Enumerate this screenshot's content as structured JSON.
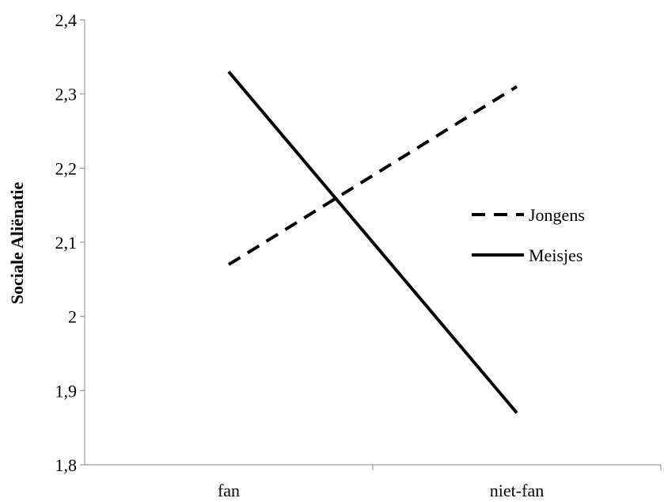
{
  "chart_data": {
    "type": "line",
    "title": "",
    "xlabel": "",
    "ylabel": "Sociale Aliënatie",
    "categories": [
      "fan",
      "niet-fan"
    ],
    "ylim": [
      1.8,
      2.4
    ],
    "yticks": [
      1.8,
      1.9,
      2.0,
      2.1,
      2.2,
      2.3,
      2.4
    ],
    "ytick_labels": [
      "1,8",
      "1,9",
      "2",
      "2,1",
      "2,2",
      "2,3",
      "2,4"
    ],
    "grid": false,
    "legend_position": "right",
    "series": [
      {
        "name": "Jongens",
        "values": [
          2.07,
          2.31
        ],
        "style": "dashed",
        "color": "#000000"
      },
      {
        "name": "Meisjes",
        "values": [
          2.33,
          1.87
        ],
        "style": "solid",
        "color": "#000000"
      }
    ]
  }
}
